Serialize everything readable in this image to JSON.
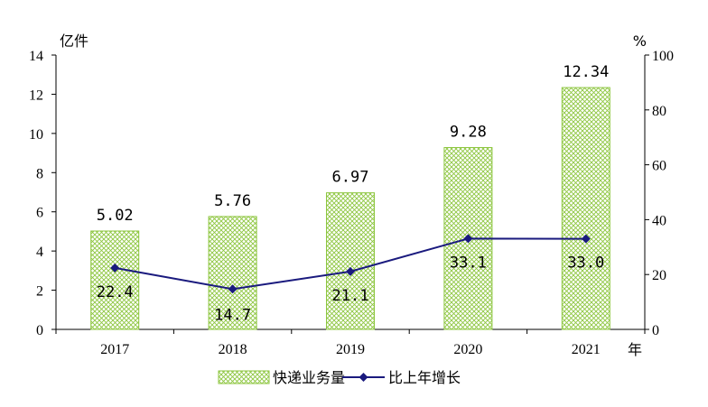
{
  "chart_data": {
    "type": "bar",
    "categories": [
      "2017",
      "2018",
      "2019",
      "2020",
      "2021"
    ],
    "series": [
      {
        "name": "快递业务量",
        "type": "bar",
        "axis": "left",
        "values": [
          5.02,
          5.76,
          6.97,
          9.28,
          12.34
        ],
        "labels": [
          "5.02",
          "5.76",
          "6.97",
          "9.28",
          "12.34"
        ],
        "color": "#8dc63f"
      },
      {
        "name": "比上年增长",
        "type": "line",
        "axis": "right",
        "values": [
          22.4,
          14.7,
          21.1,
          33.1,
          33.0
        ],
        "labels": [
          "22.4",
          "14.7",
          "21.1",
          "33.1",
          "33.0"
        ],
        "color": "#1a1a7e"
      }
    ],
    "y_left": {
      "unit": "亿件",
      "ylim": [
        0,
        14
      ],
      "ticks": [
        "0",
        "2",
        "4",
        "6",
        "8",
        "10",
        "12",
        "14"
      ]
    },
    "y_right": {
      "unit": "%",
      "ylim": [
        0,
        100
      ],
      "ticks": [
        "0",
        "20",
        "40",
        "60",
        "80",
        "100"
      ]
    },
    "x_unit": "年",
    "legend": {
      "position": "bottom",
      "items": [
        "快递业务量",
        "比上年增长"
      ]
    },
    "grid": false
  }
}
